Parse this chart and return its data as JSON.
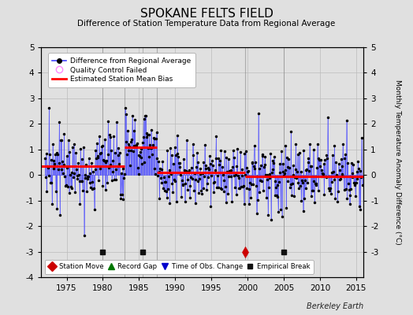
{
  "title": "SPOKANE FELTS FIELD",
  "subtitle": "Difference of Station Temperature Data from Regional Average",
  "ylabel": "Monthly Temperature Anomaly Difference (°C)",
  "xlabel_credit": "Berkeley Earth",
  "ylim": [
    -4,
    5
  ],
  "xlim": [
    1971.5,
    2016
  ],
  "xticks": [
    1975,
    1980,
    1985,
    1990,
    1995,
    2000,
    2005,
    2010,
    2015
  ],
  "yticks": [
    -4,
    -3,
    -2,
    -1,
    0,
    1,
    2,
    3,
    4,
    5
  ],
  "background_color": "#e0e0e0",
  "plot_bg_color": "#e0e0e0",
  "line_color": "#4444ff",
  "marker_color": "#000000",
  "bias_color": "#ff0000",
  "station_move_color": "#cc0000",
  "record_gap_color": "#007700",
  "tobs_color": "#0000cc",
  "empirical_break_color": "#111111",
  "grid_color": "#bbbbbb",
  "segment_biases": [
    {
      "start": 1971.5,
      "end": 1983.0,
      "value": 0.35
    },
    {
      "start": 1983.0,
      "end": 1987.5,
      "value": 1.1
    },
    {
      "start": 1987.5,
      "end": 1999.7,
      "value": 0.1
    },
    {
      "start": 1999.7,
      "end": 2016.0,
      "value": -0.05
    }
  ],
  "vlines": [
    1983.0,
    1987.5,
    1999.7
  ],
  "station_moves": [
    1999.7
  ],
  "empirical_breaks": [
    1980.0,
    1985.5,
    2005.0
  ],
  "event_y": -3.0,
  "data_start": 1972.0,
  "data_end": 2015.92,
  "seed": 12
}
